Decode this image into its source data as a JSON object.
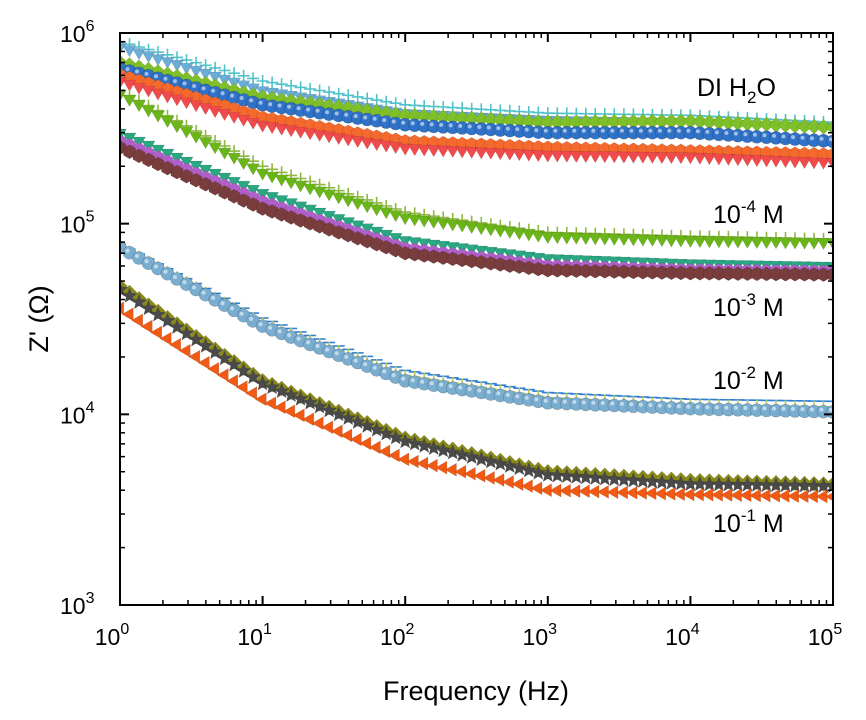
{
  "chart_data": {
    "type": "scatter",
    "xscale": "log",
    "yscale": "log",
    "xlim": [
      1,
      100000
    ],
    "ylim": [
      1000,
      1000000
    ],
    "xlabel": "Frequency (Hz)",
    "ylabel": "Z' (Ω)",
    "x_ticks": [
      {
        "base": "10",
        "exp": "0"
      },
      {
        "base": "10",
        "exp": "1"
      },
      {
        "base": "10",
        "exp": "2"
      },
      {
        "base": "10",
        "exp": "3"
      },
      {
        "base": "10",
        "exp": "4"
      },
      {
        "base": "10",
        "exp": "5"
      }
    ],
    "y_ticks": [
      {
        "base": "10",
        "exp": "3"
      },
      {
        "base": "10",
        "exp": "4"
      },
      {
        "base": "10",
        "exp": "5"
      },
      {
        "base": "10",
        "exp": "6"
      }
    ],
    "grid": false,
    "annotations": [
      {
        "parts": [
          {
            "t": "DI H"
          },
          {
            "t": "2",
            "s": "sub"
          },
          {
            "t": "O"
          }
        ]
      },
      {
        "parts": [
          {
            "t": "10"
          },
          {
            "t": "-4",
            "s": "sup"
          },
          {
            "t": " M"
          }
        ]
      },
      {
        "parts": [
          {
            "t": "10"
          },
          {
            "t": "-3",
            "s": "sup"
          },
          {
            "t": " M"
          }
        ]
      },
      {
        "parts": [
          {
            "t": "10"
          },
          {
            "t": "-2",
            "s": "sup"
          },
          {
            "t": " M"
          }
        ]
      },
      {
        "parts": [
          {
            "t": "10"
          },
          {
            "t": "-1",
            "s": "sup"
          },
          {
            "t": " M"
          }
        ]
      }
    ],
    "series": [
      {
        "color": "#4fc3c9",
        "marker": "plus",
        "points": [
          [
            1,
            900000
          ],
          [
            10,
            560000
          ],
          [
            100,
            420000
          ],
          [
            1000,
            380000
          ],
          [
            10000,
            370000
          ],
          [
            100000,
            340000
          ]
        ]
      },
      {
        "color": "#6aaed8",
        "marker": "triangle-down",
        "points": [
          [
            1,
            850000
          ],
          [
            10,
            500000
          ],
          [
            100,
            380000
          ],
          [
            1000,
            350000
          ],
          [
            10000,
            340000
          ],
          [
            100000,
            320000
          ]
        ]
      },
      {
        "color": "#7fbf2a",
        "marker": "diamond",
        "points": [
          [
            1,
            700000
          ],
          [
            10,
            460000
          ],
          [
            100,
            370000
          ],
          [
            1000,
            340000
          ],
          [
            10000,
            345000
          ],
          [
            100000,
            320000
          ]
        ]
      },
      {
        "color": "#2f72c8",
        "marker": "sphere",
        "points": [
          [
            1,
            650000
          ],
          [
            10,
            420000
          ],
          [
            100,
            330000
          ],
          [
            1000,
            300000
          ],
          [
            10000,
            300000
          ],
          [
            100000,
            270000
          ]
        ]
      },
      {
        "color": "#f56a2c",
        "marker": "hexagon",
        "points": [
          [
            1,
            600000
          ],
          [
            10,
            360000
          ],
          [
            100,
            270000
          ],
          [
            1000,
            250000
          ],
          [
            10000,
            240000
          ],
          [
            100000,
            230000
          ]
        ]
      },
      {
        "color": "#f04a4a",
        "marker": "triangle-down",
        "points": [
          [
            1,
            560000
          ],
          [
            10,
            330000
          ],
          [
            100,
            250000
          ],
          [
            1000,
            230000
          ],
          [
            10000,
            225000
          ],
          [
            100000,
            210000
          ]
        ]
      },
      {
        "color": "#8fb840",
        "marker": "plus",
        "points": [
          [
            1,
            500000
          ],
          [
            10,
            200000
          ],
          [
            100,
            115000
          ],
          [
            1000,
            90000
          ],
          [
            10000,
            86000
          ],
          [
            100000,
            83000
          ]
        ]
      },
      {
        "color": "#6ab619",
        "marker": "triangle-down",
        "points": [
          [
            1,
            480000
          ],
          [
            10,
            185000
          ],
          [
            100,
            108000
          ],
          [
            1000,
            86000
          ],
          [
            10000,
            82000
          ],
          [
            100000,
            80000
          ]
        ]
      },
      {
        "color": "#2aa883",
        "marker": "triangle-down",
        "points": [
          [
            1,
            300000
          ],
          [
            10,
            145000
          ],
          [
            100,
            82000
          ],
          [
            1000,
            66000
          ],
          [
            10000,
            62000
          ],
          [
            100000,
            60000
          ]
        ]
      },
      {
        "color": "#b15fc9",
        "marker": "hexagon",
        "points": [
          [
            1,
            270000
          ],
          [
            10,
            130000
          ],
          [
            100,
            74000
          ],
          [
            1000,
            60000
          ],
          [
            10000,
            57000
          ],
          [
            100000,
            56000
          ]
        ]
      },
      {
        "color": "#7a3d3d",
        "marker": "hexagon",
        "points": [
          [
            1,
            250000
          ],
          [
            10,
            120000
          ],
          [
            100,
            70000
          ],
          [
            1000,
            57000
          ],
          [
            10000,
            55000
          ],
          [
            100000,
            54000
          ]
        ]
      },
      {
        "color": "#2f80d6",
        "marker": "dash",
        "points": [
          [
            1,
            78000
          ],
          [
            10,
            32000
          ],
          [
            100,
            17000
          ],
          [
            1000,
            13000
          ],
          [
            10000,
            12000
          ],
          [
            100000,
            11700
          ]
        ]
      },
      {
        "color": "#b8c860",
        "marker": "plus",
        "points": [
          [
            1,
            76000
          ],
          [
            10,
            30000
          ],
          [
            100,
            16000
          ],
          [
            1000,
            12200
          ],
          [
            10000,
            11200
          ],
          [
            100000,
            10900
          ]
        ]
      },
      {
        "color": "#7aaed0",
        "marker": "sphere",
        "points": [
          [
            1,
            75000
          ],
          [
            10,
            29000
          ],
          [
            100,
            15000
          ],
          [
            1000,
            11500
          ],
          [
            10000,
            10700
          ],
          [
            100000,
            10300
          ]
        ]
      },
      {
        "color": "#8a8a1a",
        "marker": "diamond",
        "points": [
          [
            1,
            47000
          ],
          [
            10,
            15000
          ],
          [
            100,
            7500
          ],
          [
            1000,
            5000
          ],
          [
            10000,
            4500
          ],
          [
            100000,
            4300
          ]
        ]
      },
      {
        "color": "#4a4a4a",
        "marker": "star",
        "points": [
          [
            1,
            45000
          ],
          [
            10,
            14500
          ],
          [
            100,
            7200
          ],
          [
            1000,
            4800
          ],
          [
            10000,
            4300
          ],
          [
            100000,
            4200
          ]
        ]
      },
      {
        "color": "#f05a14",
        "marker": "triangle-left",
        "points": [
          [
            1,
            36000
          ],
          [
            10,
            12000
          ],
          [
            100,
            5800
          ],
          [
            1000,
            4000
          ],
          [
            10000,
            3800
          ],
          [
            100000,
            3700
          ]
        ]
      }
    ]
  }
}
